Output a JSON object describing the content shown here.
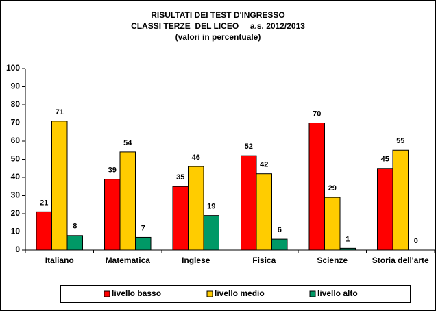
{
  "chart_data": {
    "type": "bar",
    "title": [
      "RISULTATI DEI TEST D'INGRESSO",
      "CLASSI TERZE  DEL LICEO     a.s. 2012/2013",
      "(valori in percentuale)"
    ],
    "categories": [
      "Italiano",
      "Matematica",
      "Inglese",
      "Fisica",
      "Scienze",
      "Storia dell'arte"
    ],
    "series": [
      {
        "name": "livello basso",
        "color": "#ff0000",
        "values": [
          21,
          39,
          35,
          52,
          70,
          45
        ]
      },
      {
        "name": "livello medio",
        "color": "#ffcc00",
        "values": [
          71,
          54,
          46,
          42,
          29,
          55
        ]
      },
      {
        "name": "livello alto",
        "color": "#009966",
        "values": [
          8,
          7,
          19,
          6,
          1,
          0
        ]
      }
    ],
    "ylim": [
      0,
      100
    ],
    "yticks": [
      0,
      10,
      20,
      30,
      40,
      50,
      60,
      70,
      80,
      90,
      100
    ],
    "grid": false,
    "legend": "bottom"
  }
}
